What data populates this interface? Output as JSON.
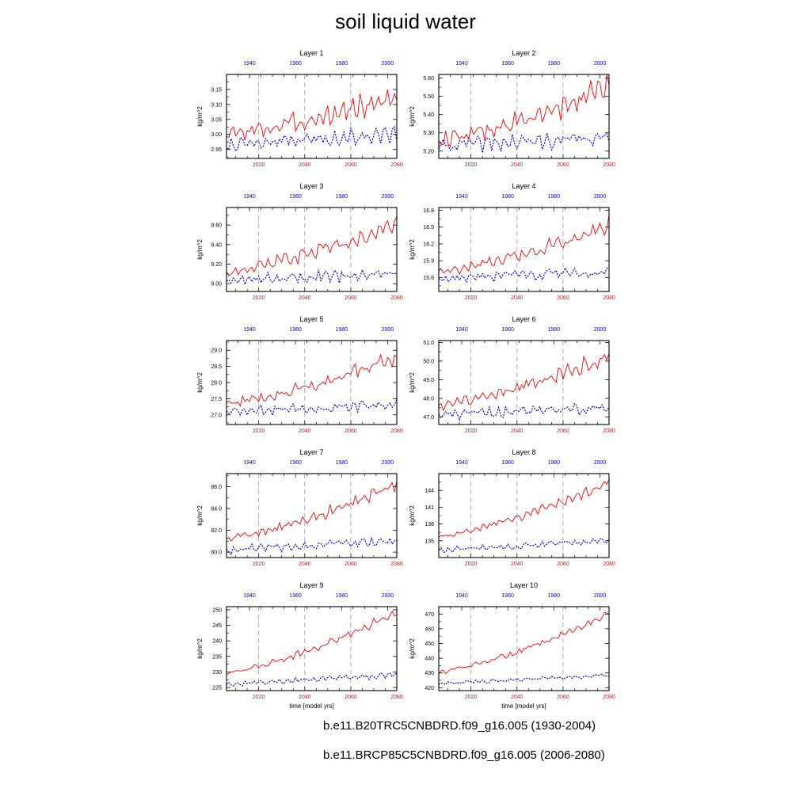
{
  "title": "soil liquid water",
  "colors": {
    "historical": "#0000ff",
    "future": "#ff0000",
    "grid": "#9a9a9a",
    "axis": "#000000"
  },
  "legend": [
    {
      "label": "b.e11.B20TRC5CNBDRD.f09_g16.005 (1930-2004)",
      "style": "dashed",
      "color": "#0000ff"
    },
    {
      "label": "b.e11.BRCP85C5CNBDRD.f09_g16.005 (2006-2080)",
      "style": "solid",
      "color": "#ff0000"
    }
  ],
  "chart_data": [
    {
      "type": "line",
      "title": "Layer 1",
      "ylabel": "kg/m^2",
      "xlabel": "",
      "ylim": [
        2.92,
        3.2
      ],
      "yticks": [
        "2.95",
        "3.00",
        "3.05",
        "3.10",
        "3.15"
      ],
      "ytick_values": [
        2.95,
        3.0,
        3.05,
        3.1,
        3.15
      ],
      "x_bottom": {
        "ticks": [
          "2020",
          "2040",
          "2060",
          "2080"
        ],
        "range": [
          2006,
          2080
        ]
      },
      "x_top": {
        "ticks": [
          "1940",
          "1960",
          "1980",
          "2000"
        ],
        "range": [
          1930,
          2004
        ]
      },
      "series": [
        {
          "label": "2006-2080",
          "from": 2006,
          "to": 2080,
          "start": 3.0,
          "end": 3.13,
          "osc": 0.028
        },
        {
          "label": "1930-2004",
          "from": 1930,
          "to": 2004,
          "start": 2.97,
          "end": 3.0,
          "osc": 0.02
        }
      ]
    },
    {
      "type": "line",
      "title": "Layer 2",
      "ylabel": "kg/m^2",
      "xlabel": "",
      "ylim": [
        5.16,
        5.62
      ],
      "yticks": [
        "5.20",
        "5.30",
        "5.40",
        "5.50",
        "5.60"
      ],
      "ytick_values": [
        5.2,
        5.3,
        5.4,
        5.5,
        5.6
      ],
      "x_bottom": {
        "ticks": [
          "2020",
          "2040",
          "2060",
          "2080"
        ],
        "range": [
          2006,
          2080
        ]
      },
      "x_top": {
        "ticks": [
          "1940",
          "1960",
          "1980",
          "2000"
        ],
        "range": [
          1930,
          2004
        ]
      },
      "series": [
        {
          "label": "2006-2080",
          "from": 2006,
          "to": 2080,
          "start": 5.26,
          "end": 5.55,
          "osc": 0.045
        },
        {
          "label": "1930-2004",
          "from": 1930,
          "to": 2004,
          "start": 5.23,
          "end": 5.27,
          "osc": 0.035
        }
      ]
    },
    {
      "type": "line",
      "title": "Layer 3",
      "ylabel": "kg/m^2",
      "xlabel": "",
      "ylim": [
        8.92,
        9.78
      ],
      "yticks": [
        "9.00",
        "9.20",
        "9.40",
        "9.60"
      ],
      "ytick_values": [
        9.0,
        9.2,
        9.4,
        9.6
      ],
      "x_bottom": {
        "ticks": [
          "2020",
          "2040",
          "2060",
          "2080"
        ],
        "range": [
          2006,
          2080
        ]
      },
      "x_top": {
        "ticks": [
          "1940",
          "1960",
          "1980",
          "2000"
        ],
        "range": [
          1930,
          2004
        ]
      },
      "series": [
        {
          "label": "2006-2080",
          "from": 2006,
          "to": 2080,
          "start": 9.12,
          "end": 9.62,
          "osc": 0.06
        },
        {
          "label": "1930-2004",
          "from": 1930,
          "to": 2004,
          "start": 9.04,
          "end": 9.1,
          "osc": 0.05
        }
      ]
    },
    {
      "type": "line",
      "title": "Layer 4",
      "ylabel": "kg/m^2",
      "xlabel": "",
      "ylim": [
        15.35,
        16.85
      ],
      "yticks": [
        "15.6",
        "15.9",
        "16.2",
        "16.5",
        "16.8"
      ],
      "ytick_values": [
        15.6,
        15.9,
        16.2,
        16.5,
        16.8
      ],
      "x_bottom": {
        "ticks": [
          "2020",
          "2040",
          "2060",
          "2080"
        ],
        "range": [
          2006,
          2080
        ]
      },
      "x_top": {
        "ticks": [
          "1940",
          "1960",
          "1980",
          "2000"
        ],
        "range": [
          1930,
          2004
        ]
      },
      "series": [
        {
          "label": "2006-2080",
          "from": 2006,
          "to": 2080,
          "start": 15.7,
          "end": 16.55,
          "osc": 0.1
        },
        {
          "label": "1930-2004",
          "from": 1930,
          "to": 2004,
          "start": 15.58,
          "end": 15.68,
          "osc": 0.08
        }
      ]
    },
    {
      "type": "line",
      "title": "Layer 5",
      "ylabel": "kg/m^2",
      "xlabel": "",
      "ylim": [
        26.7,
        29.3
      ],
      "yticks": [
        "27.0",
        "27.5",
        "28.0",
        "28.5",
        "29.0"
      ],
      "ytick_values": [
        27.0,
        27.5,
        28.0,
        28.5,
        29.0
      ],
      "x_bottom": {
        "ticks": [
          "2020",
          "2040",
          "2060",
          "2080"
        ],
        "range": [
          2006,
          2080
        ]
      },
      "x_top": {
        "ticks": [
          "1940",
          "1960",
          "1980",
          "2000"
        ],
        "range": [
          1930,
          2004
        ]
      },
      "series": [
        {
          "label": "2006-2080",
          "from": 2006,
          "to": 2080,
          "start": 27.35,
          "end": 28.8,
          "osc": 0.16
        },
        {
          "label": "1930-2004",
          "from": 1930,
          "to": 2004,
          "start": 27.1,
          "end": 27.3,
          "osc": 0.13
        }
      ]
    },
    {
      "type": "line",
      "title": "Layer 6",
      "ylabel": "kg/m^2",
      "xlabel": "",
      "ylim": [
        46.6,
        51.1
      ],
      "yticks": [
        "47.0",
        "48.0",
        "49.0",
        "50.0",
        "51.0"
      ],
      "ytick_values": [
        47.0,
        48.0,
        49.0,
        50.0,
        51.0
      ],
      "x_bottom": {
        "ticks": [
          "2020",
          "2040",
          "2060",
          "2080"
        ],
        "range": [
          2006,
          2080
        ]
      },
      "x_top": {
        "ticks": [
          "1940",
          "1960",
          "1980",
          "2000"
        ],
        "range": [
          1930,
          2004
        ]
      },
      "series": [
        {
          "label": "2006-2080",
          "from": 2006,
          "to": 2080,
          "start": 47.6,
          "end": 50.3,
          "osc": 0.28
        },
        {
          "label": "1930-2004",
          "from": 1930,
          "to": 2004,
          "start": 47.1,
          "end": 47.5,
          "osc": 0.22
        }
      ]
    },
    {
      "type": "line",
      "title": "Layer 7",
      "ylabel": "kg/m^2",
      "xlabel": "",
      "ylim": [
        79.5,
        87.2
      ],
      "yticks": [
        "80.0",
        "82.0",
        "84.0",
        "86.0"
      ],
      "ytick_values": [
        80.0,
        82.0,
        84.0,
        86.0
      ],
      "x_bottom": {
        "ticks": [
          "2020",
          "2040",
          "2060",
          "2080"
        ],
        "range": [
          2006,
          2080
        ]
      },
      "x_top": {
        "ticks": [
          "1940",
          "1960",
          "1980",
          "2000"
        ],
        "range": [
          1930,
          2004
        ]
      },
      "series": [
        {
          "label": "2006-2080",
          "from": 2006,
          "to": 2080,
          "start": 81.2,
          "end": 86.3,
          "osc": 0.4
        },
        {
          "label": "1930-2004",
          "from": 1930,
          "to": 2004,
          "start": 80.2,
          "end": 81.0,
          "osc": 0.3
        }
      ]
    },
    {
      "type": "line",
      "title": "Layer 8",
      "ylabel": "kg/m^2",
      "xlabel": "",
      "ylim": [
        132,
        147
      ],
      "yticks": [
        "135",
        "138",
        "141",
        "144"
      ],
      "ytick_values": [
        135,
        138,
        141,
        144
      ],
      "x_bottom": {
        "ticks": [
          "2020",
          "2040",
          "2060",
          "2080"
        ],
        "range": [
          2006,
          2080
        ]
      },
      "x_top": {
        "ticks": [
          "1940",
          "1960",
          "1980",
          "2000"
        ],
        "range": [
          1930,
          2004
        ]
      },
      "series": [
        {
          "label": "2006-2080",
          "from": 2006,
          "to": 2080,
          "start": 135.8,
          "end": 145.5,
          "osc": 0.6
        },
        {
          "label": "1930-2004",
          "from": 1930,
          "to": 2004,
          "start": 133.3,
          "end": 135.0,
          "osc": 0.4
        }
      ]
    },
    {
      "type": "line",
      "title": "Layer 9",
      "ylabel": "kg/m^2",
      "xlabel": "time [model yrs]",
      "ylim": [
        224,
        251
      ],
      "yticks": [
        "225",
        "230",
        "235",
        "240",
        "245",
        "250"
      ],
      "ytick_values": [
        225,
        230,
        235,
        240,
        245,
        250
      ],
      "x_bottom": {
        "ticks": [
          "2020",
          "2040",
          "2060",
          "2080"
        ],
        "range": [
          2006,
          2080
        ]
      },
      "x_top": {
        "ticks": [
          "1940",
          "1960",
          "1980",
          "2000"
        ],
        "range": [
          1930,
          2004
        ]
      },
      "series": [
        {
          "label": "2006-2080",
          "from": 2006,
          "to": 2080,
          "start": 229.5,
          "end": 249.5,
          "osc": 0.9
        },
        {
          "label": "1930-2004",
          "from": 1930,
          "to": 2004,
          "start": 226.0,
          "end": 229.0,
          "osc": 0.7
        }
      ]
    },
    {
      "type": "line",
      "title": "Layer 10",
      "ylabel": "kg/m^2",
      "xlabel": "time [model yrs]",
      "ylim": [
        418,
        475
      ],
      "yticks": [
        "420",
        "430",
        "440",
        "450",
        "460",
        "470"
      ],
      "ytick_values": [
        420,
        430,
        440,
        450,
        460,
        470
      ],
      "x_bottom": {
        "ticks": [
          "2020",
          "2040",
          "2060",
          "2080"
        ],
        "range": [
          2006,
          2080
        ]
      },
      "x_top": {
        "ticks": [
          "1940",
          "1960",
          "1980",
          "2000"
        ],
        "range": [
          1930,
          2004
        ]
      },
      "series": [
        {
          "label": "2006-2080",
          "from": 2006,
          "to": 2080,
          "start": 430,
          "end": 471,
          "osc": 1.5
        },
        {
          "label": "1930-2004",
          "from": 1930,
          "to": 2004,
          "start": 422.5,
          "end": 428.5,
          "osc": 1.0
        }
      ]
    }
  ]
}
